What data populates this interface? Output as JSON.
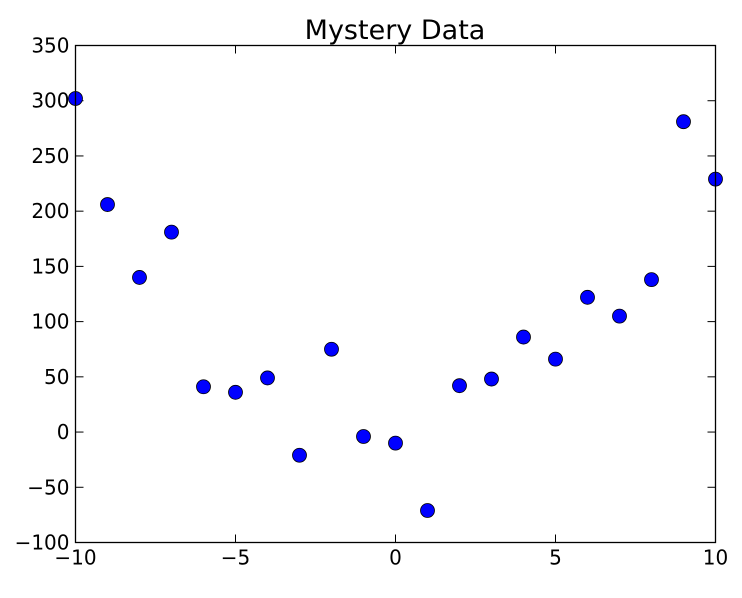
{
  "chart_data": {
    "type": "scatter",
    "title": "Mystery Data",
    "xlabel": "",
    "ylabel": "",
    "xlim": [
      -10,
      10
    ],
    "ylim": [
      -100,
      350
    ],
    "x_ticks": [
      -10,
      -5,
      0,
      5,
      10
    ],
    "y_ticks": [
      -100,
      -50,
      0,
      50,
      100,
      150,
      200,
      250,
      300,
      350
    ],
    "grid": false,
    "marker_color": "#0000ff",
    "series": [
      {
        "x": [
          -10,
          -9,
          -8,
          -7,
          -6,
          -5,
          -4,
          -3,
          -2,
          -1,
          0,
          1,
          2,
          3,
          4,
          5,
          6,
          7,
          8,
          9,
          10
        ],
        "y": [
          302,
          206,
          140,
          181,
          41,
          36,
          49,
          -21,
          75,
          -4,
          -10,
          -71,
          42,
          48,
          86,
          66,
          122,
          105,
          138,
          281,
          229
        ]
      }
    ]
  }
}
